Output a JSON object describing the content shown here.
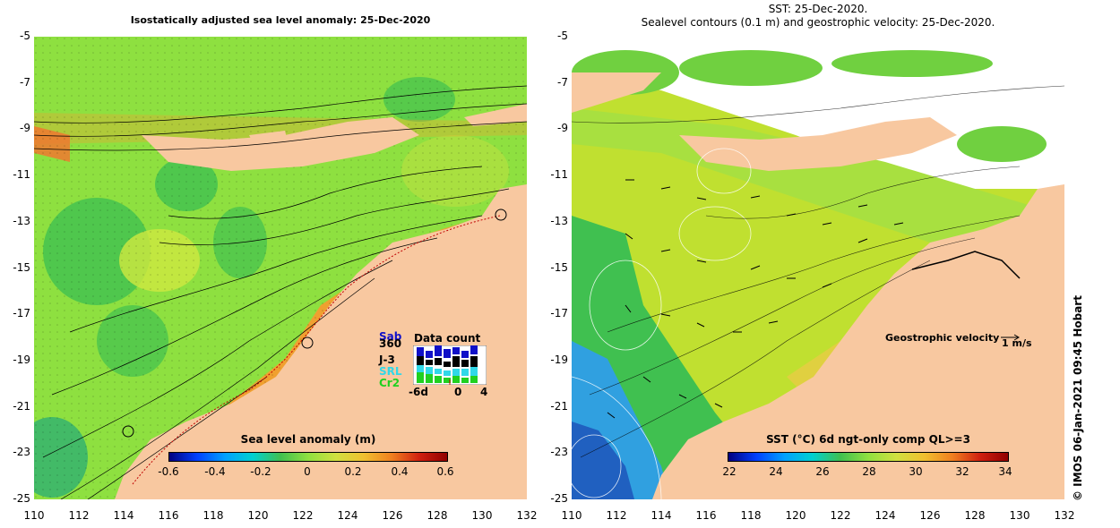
{
  "left_panel": {
    "title": "Isostatically adjusted sea level anomaly: 25-Dec-2020",
    "colorbar": {
      "label": "Sea level anomaly (m)",
      "ticks": [
        "-0.6",
        "-0.4",
        "-0.2",
        "0",
        "0.2",
        "0.4",
        "0.6"
      ],
      "range": [
        -0.6,
        0.6
      ]
    },
    "data_count": {
      "title": "Data count",
      "legend": [
        {
          "name": "Sab",
          "color": "#1010c8"
        },
        {
          "name": "360",
          "color": "#000000"
        },
        {
          "name": "J-3",
          "color": "#000000"
        },
        {
          "name": "SRL",
          "color": "#30d8e8"
        },
        {
          "name": "Cr2",
          "color": "#20d020"
        }
      ],
      "x_ticks": [
        "-6d",
        "0",
        "4"
      ]
    }
  },
  "right_panel": {
    "title_line1": "SST: 25-Dec-2020.",
    "title_line2": "Sealevel contours (0.1 m) and geostrophic velocity: 25-Dec-2020.",
    "colorbar": {
      "label": "SST (°C) 6d ngt-only comp QL>=3",
      "ticks": [
        "22",
        "24",
        "26",
        "28",
        "30",
        "32",
        "34"
      ],
      "range": [
        22,
        34
      ]
    },
    "velocity_label": "Geostrophic velocity",
    "velocity_scale": "1 m/s"
  },
  "axes": {
    "lat_ticks": [
      "-5",
      "-7",
      "-9",
      "-11",
      "-13",
      "-15",
      "-17",
      "-19",
      "-21",
      "-23",
      "-25"
    ],
    "lon_ticks": [
      "110",
      "112",
      "114",
      "116",
      "118",
      "120",
      "122",
      "124",
      "126",
      "128",
      "130",
      "132"
    ],
    "lat_range": [
      -25,
      -5
    ],
    "lon_range": [
      110,
      132
    ]
  },
  "credit": "© IMOS 06-Jan-2021 09:45 Hobart",
  "colors": {
    "land": "#f8c8a0",
    "sla_bg": "#8ee040",
    "sst_bg": "#c0e030"
  }
}
